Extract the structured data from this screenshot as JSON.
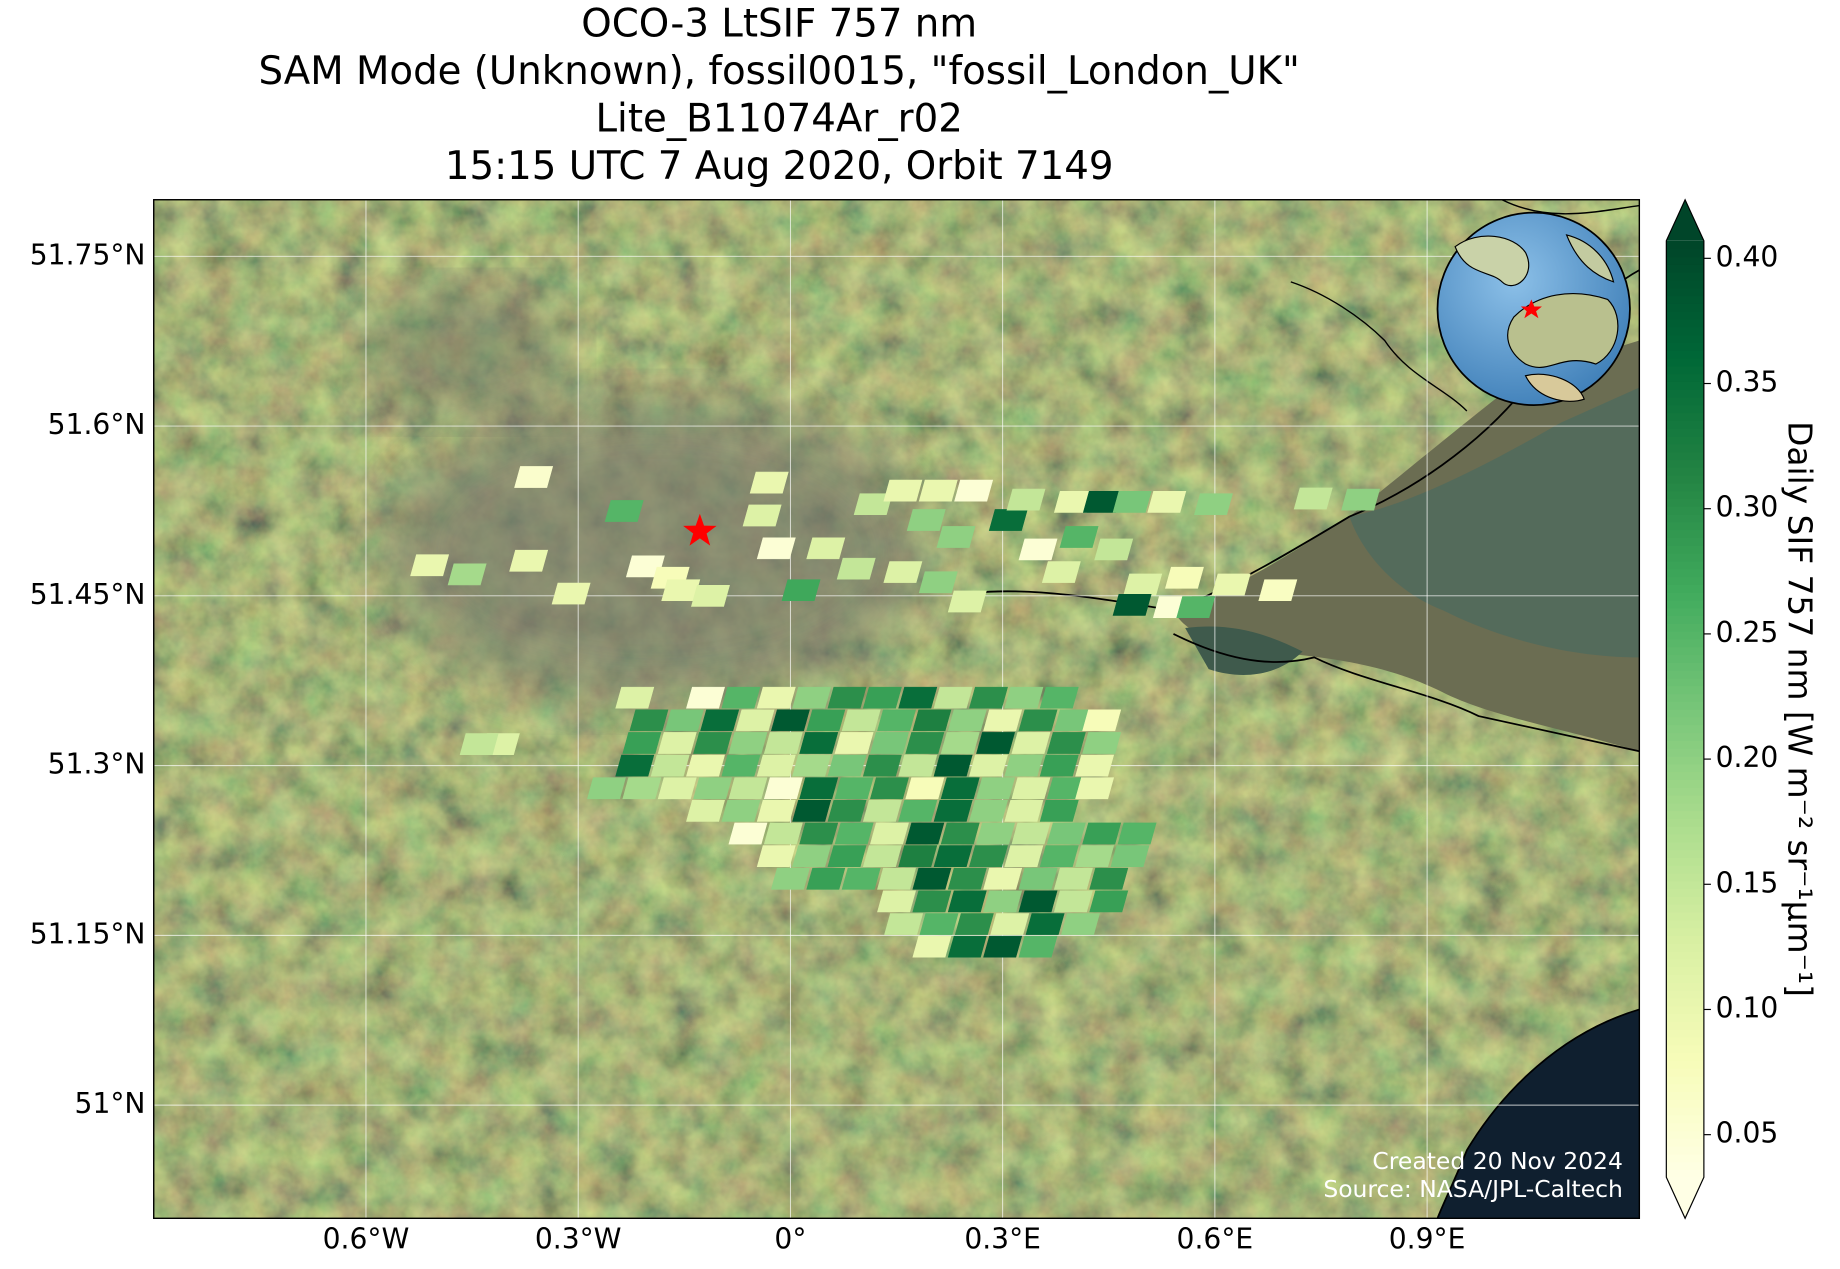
{
  "chart_data": {
    "type": "map",
    "title": [
      "OCO-3 LtSIF 757 nm",
      "SAM Mode (Unknown), fossil0015, \"fossil_London_UK\"",
      "Lite_B11074Ar_r02",
      "15:15 UTC 7 Aug 2020, Orbit 7149"
    ],
    "xlim": [
      -0.9,
      1.2
    ],
    "ylim": [
      50.9,
      51.8
    ],
    "xticks": [
      {
        "value": -0.6,
        "label": "0.6°W"
      },
      {
        "value": -0.3,
        "label": "0.3°W"
      },
      {
        "value": 0,
        "label": "0°"
      },
      {
        "value": 0.3,
        "label": "0.3°E"
      },
      {
        "value": 0.6,
        "label": "0.6°E"
      },
      {
        "value": 0.9,
        "label": "0.9°E"
      }
    ],
    "yticks": [
      {
        "value": 51.75,
        "label": "51.75°N"
      },
      {
        "value": 51.6,
        "label": "51.6°N"
      },
      {
        "value": 51.45,
        "label": "51.45°N"
      },
      {
        "value": 51.3,
        "label": "51.3°N"
      },
      {
        "value": 51.15,
        "label": "51.15°N"
      },
      {
        "value": 51,
        "label": "51°N"
      }
    ],
    "grid": true,
    "colorbar": {
      "label": "Daily SIF 757 nm [W m⁻² sr⁻¹μm⁻¹]",
      "clim": [
        0.033,
        0.407
      ],
      "ticks": [
        0.05,
        {
          "value": 0.1,
          "label": "0.10"
        },
        0.15,
        {
          "value": 0.2,
          "label": "0.20"
        },
        0.25,
        {
          "value": 0.3,
          "label": "0.30"
        },
        0.35,
        {
          "value": 0.4,
          "label": "0.40"
        }
      ],
      "colormap": [
        "#ffffe5",
        "#f7fcb9",
        "#d9f0a3",
        "#addd8e",
        "#78c679",
        "#41ab5d",
        "#238443",
        "#006837",
        "#004529"
      ]
    },
    "footprints": {
      "lon": [
        -0.363,
        -0.03,
        -0.235,
        -0.04,
        -0.02,
        -0.51,
        -0.457,
        -0.37,
        -0.31,
        -0.205,
        -0.17,
        -0.155,
        -0.113,
        0.015,
        0.05,
        0.093,
        0.117,
        0.159,
        0.192,
        0.209,
        0.259,
        0.308,
        0.333,
        0.234,
        0.159,
        0.209,
        0.25,
        0.35,
        0.383,
        0.4,
        0.441,
        0.483,
        0.532,
        0.598,
        0.457,
        0.408,
        0.498,
        0.557,
        0.623,
        0.689,
        0.483,
        0.54,
        0.573,
        0.739,
        0.806,
        -0.41,
        -0.44
      ],
      "lat": [
        51.555,
        51.55,
        51.525,
        51.521,
        51.492,
        51.477,
        51.469,
        51.481,
        51.452,
        51.476,
        51.466,
        51.455,
        51.45,
        51.455,
        51.492,
        51.474,
        51.531,
        51.543,
        51.517,
        51.543,
        51.543,
        51.517,
        51.535,
        51.502,
        51.471,
        51.462,
        51.445,
        51.491,
        51.471,
        51.533,
        51.533,
        51.533,
        51.533,
        51.531,
        51.491,
        51.502,
        51.46,
        51.466,
        51.46,
        51.455,
        51.442,
        51.44,
        51.44,
        51.536,
        51.535,
        51.319,
        51.319
      ],
      "values": [
        0.06,
        0.1,
        0.25,
        0.12,
        0.05,
        0.1,
        0.18,
        0.1,
        0.1,
        0.05,
        0.08,
        0.1,
        0.12,
        0.27,
        0.12,
        0.15,
        0.15,
        0.1,
        0.2,
        0.1,
        0.05,
        0.35,
        0.15,
        0.2,
        0.12,
        0.2,
        0.12,
        0.05,
        0.12,
        0.1,
        0.38,
        0.22,
        0.1,
        0.2,
        0.15,
        0.25,
        0.12,
        0.08,
        0.1,
        0.07,
        0.38,
        0.05,
        0.25,
        0.15,
        0.2,
        0.12,
        0.15
      ]
    },
    "swath_rows": [
      {
        "lat": 51.36,
        "lon": [
          -0.22,
          -0.12,
          -0.07,
          -0.02,
          0.03,
          0.08,
          0.13,
          0.18,
          0.23,
          0.28,
          0.33,
          0.38
        ],
        "values": [
          0.12,
          0.05,
          0.25,
          0.1,
          0.2,
          0.3,
          0.28,
          0.35,
          0.15,
          0.3,
          0.2,
          0.25
        ]
      },
      {
        "lat": 51.34,
        "lon": [
          -0.2,
          -0.15,
          -0.1,
          -0.05,
          0,
          0.05,
          0.1,
          0.15,
          0.2,
          0.25,
          0.3,
          0.35,
          0.4,
          0.44
        ],
        "values": [
          0.3,
          0.22,
          0.35,
          0.12,
          0.38,
          0.28,
          0.15,
          0.25,
          0.32,
          0.2,
          0.1,
          0.3,
          0.22,
          0.08
        ]
      },
      {
        "lat": 51.32,
        "lon": [
          -0.21,
          -0.16,
          -0.11,
          -0.06,
          -0.01,
          0.04,
          0.09,
          0.14,
          0.19,
          0.24,
          0.29,
          0.34,
          0.39,
          0.44
        ],
        "values": [
          0.28,
          0.12,
          0.3,
          0.2,
          0.15,
          0.35,
          0.1,
          0.22,
          0.3,
          0.18,
          0.38,
          0.12,
          0.3,
          0.2
        ]
      },
      {
        "lat": 51.3,
        "lon": [
          -0.22,
          -0.17,
          -0.12,
          -0.07,
          -0.02,
          0.03,
          0.08,
          0.13,
          0.18,
          0.23,
          0.28,
          0.33,
          0.38,
          0.43
        ],
        "values": [
          0.35,
          0.15,
          0.1,
          0.25,
          0.12,
          0.18,
          0.22,
          0.3,
          0.15,
          0.38,
          0.12,
          0.2,
          0.28,
          0.1
        ]
      },
      {
        "lat": 51.28,
        "lon": [
          -0.26,
          -0.21,
          -0.16,
          -0.11,
          -0.06,
          -0.01,
          0.04,
          0.09,
          0.14,
          0.19,
          0.24,
          0.29,
          0.34,
          0.39,
          0.43
        ],
        "values": [
          0.2,
          0.18,
          0.12,
          0.2,
          0.15,
          0.05,
          0.35,
          0.25,
          0.3,
          0.08,
          0.35,
          0.2,
          0.12,
          0.25,
          0.1
        ]
      },
      {
        "lat": 51.26,
        "lon": [
          -0.12,
          -0.07,
          -0.02,
          0.03,
          0.08,
          0.13,
          0.18,
          0.23,
          0.28,
          0.33,
          0.38
        ],
        "values": [
          0.12,
          0.2,
          0.1,
          0.38,
          0.3,
          0.15,
          0.25,
          0.35,
          0.2,
          0.12,
          0.28
        ]
      },
      {
        "lat": 51.24,
        "lon": [
          -0.06,
          -0.01,
          0.04,
          0.09,
          0.14,
          0.19,
          0.24,
          0.29,
          0.34,
          0.39,
          0.44,
          0.49
        ],
        "values": [
          0.05,
          0.15,
          0.3,
          0.25,
          0.12,
          0.38,
          0.3,
          0.2,
          0.15,
          0.22,
          0.28,
          0.25
        ]
      },
      {
        "lat": 51.22,
        "lon": [
          -0.02,
          0.03,
          0.08,
          0.13,
          0.18,
          0.23,
          0.28,
          0.33,
          0.38,
          0.43,
          0.48
        ],
        "values": [
          0.1,
          0.2,
          0.28,
          0.15,
          0.32,
          0.35,
          0.3,
          0.12,
          0.25,
          0.18,
          0.22
        ]
      },
      {
        "lat": 51.2,
        "lon": [
          0,
          0.05,
          0.1,
          0.15,
          0.2,
          0.25,
          0.3,
          0.35,
          0.4,
          0.45
        ],
        "values": [
          0.2,
          0.28,
          0.25,
          0.15,
          0.38,
          0.3,
          0.1,
          0.22,
          0.15,
          0.3
        ]
      },
      {
        "lat": 51.18,
        "lon": [
          0.15,
          0.2,
          0.25,
          0.3,
          0.35,
          0.4,
          0.45
        ],
        "values": [
          0.12,
          0.3,
          0.35,
          0.2,
          0.38,
          0.15,
          0.28
        ]
      },
      {
        "lat": 51.16,
        "lon": [
          0.16,
          0.21,
          0.26,
          0.31,
          0.36,
          0.41
        ],
        "values": [
          0.15,
          0.25,
          0.3,
          0.12,
          0.35,
          0.2
        ]
      },
      {
        "lat": 51.14,
        "lon": [
          0.2,
          0.25,
          0.3,
          0.35
        ],
        "values": [
          0.1,
          0.35,
          0.38,
          0.25
        ]
      }
    ],
    "target": {
      "lon": -0.128,
      "lat": 51.507
    },
    "credits": [
      "Created 20 Nov 2024",
      "Source: NASA/JPL-Caltech"
    ]
  }
}
